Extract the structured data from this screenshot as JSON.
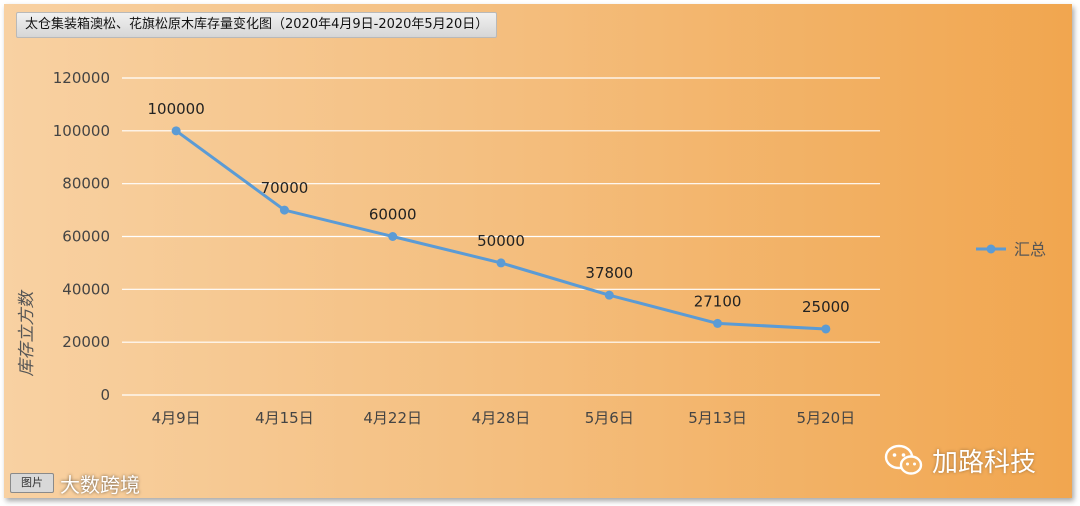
{
  "chart_data": {
    "type": "line",
    "title": "太仓集装箱澳松、花旗松原木库存量变化图（2020年4月9日-2020年5月20日）",
    "categories": [
      "4月9日",
      "4月15日",
      "4月22日",
      "4月28日",
      "5月6日",
      "5月13日",
      "5月20日"
    ],
    "series": [
      {
        "name": "汇总",
        "values": [
          100000,
          70000,
          60000,
          50000,
          37800,
          27100,
          25000
        ]
      }
    ],
    "ylabel": "库存立方数",
    "xlabel": "",
    "ylim": [
      0,
      120000
    ],
    "yticks": [
      0,
      20000,
      40000,
      60000,
      80000,
      100000,
      120000
    ],
    "grid": true,
    "legend_position": "right",
    "data_labels": true
  },
  "colors": {
    "line": "#5b9bd5",
    "grid": "#ffffff",
    "background_start": "#f8d1a2",
    "background_end": "#f1a64f"
  },
  "watermarks": {
    "left_badge": "图片",
    "left_text": "大数跨境",
    "right_icon": "wechat-icon",
    "right_text": "加路科技"
  }
}
